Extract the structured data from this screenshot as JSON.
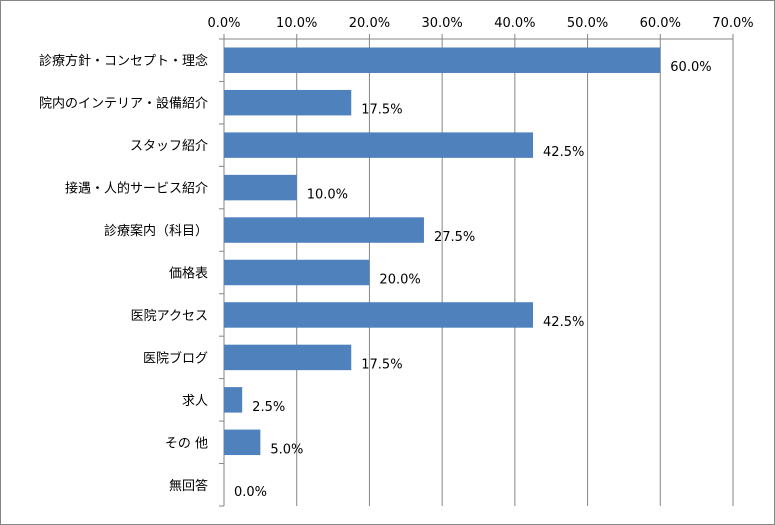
{
  "chart_data": {
    "type": "bar",
    "orientation": "horizontal",
    "categories": [
      "診療方針・コンセプト・理念",
      "院内のインテリア・設備紹介",
      "スタッフ紹介",
      "接遇・人的サービス紹介",
      "診療案内（科目）",
      "価格表",
      "医院アクセス",
      "医院ブログ",
      "求人",
      "その 他",
      "無回答"
    ],
    "values": [
      60.0,
      17.5,
      42.5,
      10.0,
      27.5,
      20.0,
      42.5,
      17.5,
      2.5,
      5.0,
      0.0
    ],
    "data_labels": [
      "60.0%",
      "17.5%",
      "42.5%",
      "10.0%",
      "27.5%",
      "20.0%",
      "42.5%",
      "17.5%",
      "2.5%",
      "5.0%",
      "0.0%"
    ],
    "xlim": [
      0,
      70
    ],
    "x_ticks": [
      "0.0%",
      "10.0%",
      "20.0%",
      "30.0%",
      "40.0%",
      "50.0%",
      "60.0%",
      "70.0%"
    ],
    "x_axis_position": "top",
    "grid": true,
    "legend": "none",
    "colors": {
      "bar": "#4F81BD",
      "grid": "#868686",
      "axis": "#868686"
    }
  }
}
